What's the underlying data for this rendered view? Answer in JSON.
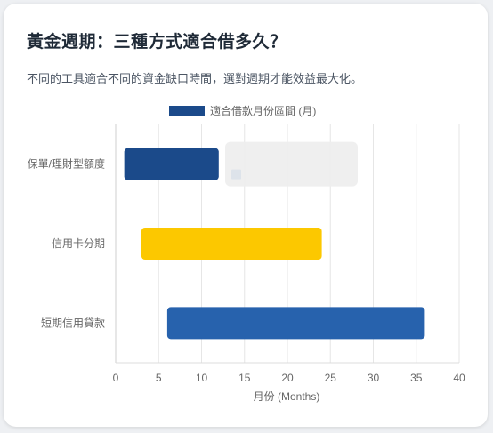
{
  "header": {
    "title": "黃金週期：三種方式適合借多久？",
    "subtitle": "不同的工具適合不同的資金缺口時間，選對週期才能效益最大化。"
  },
  "chart_data": {
    "type": "bar",
    "orientation": "horizontal",
    "legend": {
      "label": "適合借款月份區間 (月)",
      "placement": "top"
    },
    "categories": [
      "保單/理財型額度",
      "信用卡分期",
      "短期信用貸款"
    ],
    "ranges": [
      {
        "category": "保單/理財型額度",
        "start": 1,
        "end": 12,
        "color": "#1b4a8a"
      },
      {
        "category": "信用卡分期",
        "start": 3,
        "end": 24,
        "color": "#fcc800"
      },
      {
        "category": "短期信用貸款",
        "start": 6,
        "end": 36,
        "color": "#2762ad"
      }
    ],
    "xlabel": "月份 (Months)",
    "xlim": [
      0,
      40
    ],
    "xticks": [
      0,
      5,
      10,
      15,
      20,
      25,
      30,
      35,
      40
    ],
    "grid": true
  }
}
